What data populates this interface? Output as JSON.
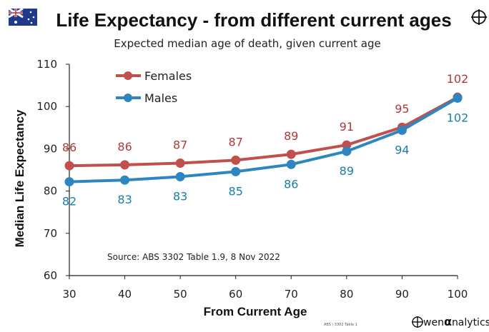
{
  "colors": {
    "females": "#c0504d",
    "males": "#2e86c1",
    "male_label": "#1a7fa8",
    "female_label": "#b03a3a",
    "axis": "#222222"
  },
  "branding": {
    "flag_icon": "australia-flag-icon",
    "crosshair_icon": "crosshair-icon",
    "brand_text": "wen",
    "brand_alpha": "α",
    "brand_text_suffix": "nalytics",
    "footnote": "ABS \\ 3302 Table 1"
  },
  "chart_data": {
    "type": "line",
    "title": "Life Expectancy - from different current ages",
    "subtitle": "Expected median age of death, given current age",
    "xlabel": "From Current Age",
    "ylabel": "Median Life Expectancy",
    "x": [
      30,
      40,
      50,
      60,
      70,
      80,
      90,
      100
    ],
    "xlim": [
      30,
      100
    ],
    "ylim": [
      60,
      110
    ],
    "yticks": [
      60,
      70,
      80,
      90,
      100,
      110
    ],
    "grid": false,
    "legend_position": "top-left",
    "series": [
      {
        "name": "Females",
        "values": [
          86.0,
          86.2,
          86.6,
          87.3,
          88.7,
          90.9,
          95.1,
          102.2
        ],
        "labels": [
          "86",
          "86",
          "87",
          "87",
          "89",
          "91",
          "95",
          "102"
        ]
      },
      {
        "name": "Males",
        "values": [
          82.2,
          82.6,
          83.4,
          84.6,
          86.3,
          89.4,
          94.4,
          102.0
        ],
        "labels": [
          "82",
          "83",
          "83",
          "85",
          "86",
          "89",
          "94",
          "102"
        ]
      }
    ],
    "annotation": "Source: ABS 3302 Table 1.9,  8 Nov 2022"
  }
}
